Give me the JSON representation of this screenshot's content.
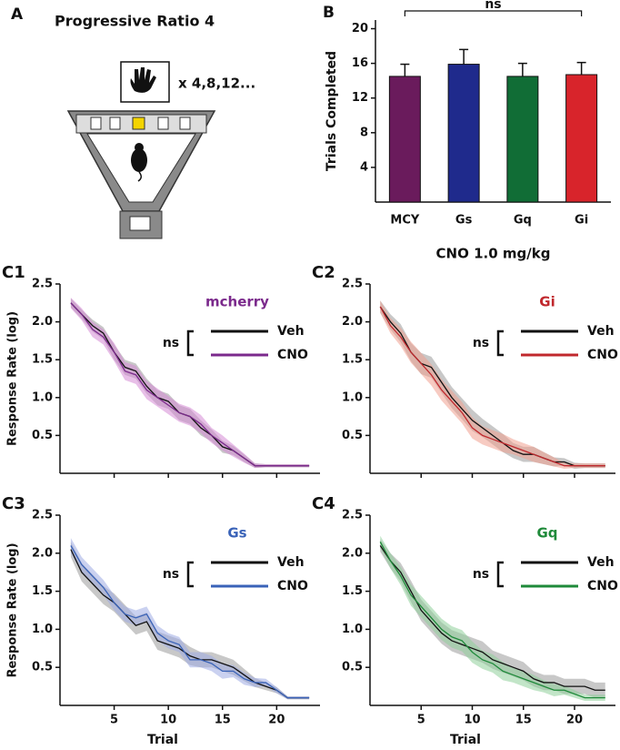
{
  "panel_a": {
    "label": "A",
    "title": "Progressive Ratio 4",
    "schedule": "x 4,8,12..."
  },
  "chart_data": [
    {
      "type": "bar",
      "panel": "B",
      "annotation": "ns",
      "ylabel": "Trials Completed",
      "xlabel": "CNO 1.0 mg/kg",
      "categories": [
        "MCY",
        "Gs",
        "Gq",
        "Gi"
      ],
      "values": [
        14.5,
        15.9,
        14.5,
        14.7
      ],
      "errors": [
        1.4,
        1.7,
        1.5,
        1.4
      ],
      "colors": [
        "#6a1b5c",
        "#1f2a8c",
        "#116d36",
        "#d8242b"
      ],
      "ylim": [
        0,
        21
      ],
      "yticks": [
        4,
        8,
        12,
        16,
        20
      ]
    },
    {
      "type": "line",
      "panel": "C1",
      "legend_title": "mcherry",
      "annotation": "ns",
      "ylabel": "Response Rate (log)",
      "show_xtick_labels": false,
      "x": [
        1,
        2,
        3,
        4,
        5,
        6,
        7,
        8,
        9,
        10,
        11,
        12,
        13,
        14,
        15,
        16,
        17,
        18,
        19,
        20,
        21,
        22,
        23
      ],
      "xlim": [
        0,
        24
      ],
      "xticks": [
        5,
        10,
        15,
        20
      ],
      "ylim": [
        0,
        2.5
      ],
      "yticks": [
        0.5,
        {
          "value": 1,
          "label": "1.0"
        },
        1.5,
        {
          "value": 2,
          "label": "2.0"
        },
        2.5
      ],
      "series": [
        {
          "name": "Veh",
          "color": "#111111",
          "band_color": "#9a9a9a",
          "values": [
            2.25,
            2.1,
            1.95,
            1.85,
            1.6,
            1.4,
            1.35,
            1.15,
            1.0,
            0.95,
            0.8,
            0.75,
            0.6,
            0.5,
            0.35,
            0.3,
            0.2,
            0.1,
            0.1,
            0.1,
            0.1,
            0.1,
            0.1
          ],
          "errors": [
            0.06,
            0.06,
            0.08,
            0.08,
            0.1,
            0.1,
            0.1,
            0.1,
            0.1,
            0.1,
            0.1,
            0.1,
            0.1,
            0.08,
            0.08,
            0.06,
            0.05,
            0.03,
            0.02,
            0.02,
            0.02,
            0.02,
            0.02
          ]
        },
        {
          "name": "CNO",
          "color": "#7b2a8c",
          "band_color": "#d68ad6",
          "values": [
            2.25,
            2.1,
            1.9,
            1.8,
            1.6,
            1.35,
            1.3,
            1.1,
            1.0,
            0.9,
            0.8,
            0.75,
            0.65,
            0.5,
            0.4,
            0.3,
            0.2,
            0.1,
            0.1,
            0.1,
            0.1,
            0.1,
            0.1
          ],
          "errors": [
            0.07,
            0.08,
            0.1,
            0.1,
            0.12,
            0.12,
            0.12,
            0.12,
            0.12,
            0.12,
            0.12,
            0.12,
            0.12,
            0.1,
            0.1,
            0.08,
            0.06,
            0.03,
            0.02,
            0.02,
            0.02,
            0.02,
            0.02
          ]
        }
      ]
    },
    {
      "type": "line",
      "panel": "C2",
      "legend_title": "Gi",
      "annotation": "ns",
      "show_xtick_labels": false,
      "x": [
        1,
        2,
        3,
        4,
        5,
        6,
        7,
        8,
        9,
        10,
        11,
        12,
        13,
        14,
        15,
        16,
        17,
        18,
        19,
        20,
        21,
        22,
        23
      ],
      "xlim": [
        0,
        24
      ],
      "xticks": [
        5,
        10,
        15,
        20
      ],
      "ylim": [
        0,
        2.5
      ],
      "yticks": [
        0.5,
        {
          "value": 1,
          "label": "1.0"
        },
        1.5,
        {
          "value": 2,
          "label": "2.0"
        },
        2.5
      ],
      "series": [
        {
          "name": "Veh",
          "color": "#111111",
          "band_color": "#9a9a9a",
          "values": [
            2.2,
            2.0,
            1.85,
            1.6,
            1.45,
            1.4,
            1.2,
            1.0,
            0.85,
            0.7,
            0.6,
            0.5,
            0.4,
            0.3,
            0.25,
            0.25,
            0.2,
            0.15,
            0.15,
            0.1,
            0.1,
            0.1,
            0.1
          ],
          "errors": [
            0.08,
            0.1,
            0.12,
            0.12,
            0.14,
            0.14,
            0.14,
            0.14,
            0.14,
            0.14,
            0.12,
            0.12,
            0.12,
            0.1,
            0.1,
            0.1,
            0.08,
            0.06,
            0.05,
            0.04,
            0.03,
            0.03,
            0.03
          ]
        },
        {
          "name": "CNO",
          "color": "#c0282d",
          "band_color": "#f0a090",
          "values": [
            2.2,
            1.95,
            1.8,
            1.6,
            1.45,
            1.3,
            1.1,
            0.95,
            0.8,
            0.6,
            0.5,
            0.45,
            0.4,
            0.35,
            0.3,
            0.25,
            0.2,
            0.15,
            0.1,
            0.1,
            0.1,
            0.1,
            0.1
          ],
          "errors": [
            0.08,
            0.1,
            0.12,
            0.14,
            0.14,
            0.14,
            0.14,
            0.14,
            0.14,
            0.14,
            0.12,
            0.12,
            0.12,
            0.1,
            0.1,
            0.1,
            0.08,
            0.06,
            0.04,
            0.03,
            0.03,
            0.03,
            0.03
          ]
        }
      ]
    },
    {
      "type": "line",
      "panel": "C3",
      "legend_title": "Gs",
      "annotation": "ns",
      "ylabel": "Response Rate (log)",
      "xlabel": "Trial",
      "show_xtick_labels": true,
      "x": [
        1,
        2,
        3,
        4,
        5,
        6,
        7,
        8,
        9,
        10,
        11,
        12,
        13,
        14,
        15,
        16,
        17,
        18,
        19,
        20,
        21,
        22,
        23
      ],
      "xlim": [
        0,
        24
      ],
      "xticks": [
        5,
        10,
        15,
        20
      ],
      "ylim": [
        0,
        2.5
      ],
      "yticks": [
        0.5,
        {
          "value": 1,
          "label": "1.0"
        },
        1.5,
        {
          "value": 2,
          "label": "2.0"
        },
        2.5
      ],
      "series": [
        {
          "name": "Veh",
          "color": "#111111",
          "band_color": "#9a9a9a",
          "values": [
            2.05,
            1.75,
            1.6,
            1.45,
            1.35,
            1.2,
            1.05,
            1.1,
            0.85,
            0.8,
            0.75,
            0.65,
            0.6,
            0.6,
            0.55,
            0.5,
            0.4,
            0.3,
            0.25,
            0.2,
            0.1,
            0.1,
            0.1
          ],
          "errors": [
            0.1,
            0.12,
            0.12,
            0.12,
            0.12,
            0.12,
            0.12,
            0.12,
            0.12,
            0.12,
            0.12,
            0.12,
            0.1,
            0.1,
            0.1,
            0.1,
            0.08,
            0.06,
            0.05,
            0.04,
            0.02,
            0.02,
            0.02
          ]
        },
        {
          "name": "CNO",
          "color": "#3a63b8",
          "band_color": "#9fabe3",
          "values": [
            2.1,
            1.85,
            1.7,
            1.55,
            1.35,
            1.2,
            1.15,
            1.2,
            0.95,
            0.85,
            0.8,
            0.6,
            0.6,
            0.55,
            0.45,
            0.45,
            0.35,
            0.3,
            0.3,
            0.2,
            0.1,
            0.1,
            0.1
          ],
          "errors": [
            0.1,
            0.1,
            0.1,
            0.1,
            0.1,
            0.1,
            0.1,
            0.1,
            0.1,
            0.1,
            0.1,
            0.1,
            0.1,
            0.1,
            0.1,
            0.08,
            0.08,
            0.06,
            0.05,
            0.04,
            0.02,
            0.02,
            0.02
          ]
        }
      ]
    },
    {
      "type": "line",
      "panel": "C4",
      "legend_title": "Gq",
      "annotation": "ns",
      "xlabel": "Trial",
      "show_xtick_labels": true,
      "x": [
        1,
        2,
        3,
        4,
        5,
        6,
        7,
        8,
        9,
        10,
        11,
        12,
        13,
        14,
        15,
        16,
        17,
        18,
        19,
        20,
        21,
        22,
        23
      ],
      "xlim": [
        0,
        24
      ],
      "xticks": [
        5,
        10,
        15,
        20
      ],
      "ylim": [
        0,
        2.5
      ],
      "yticks": [
        0.5,
        {
          "value": 1,
          "label": "1.0"
        },
        1.5,
        {
          "value": 2,
          "label": "2.0"
        },
        2.5
      ],
      "series": [
        {
          "name": "Veh",
          "color": "#111111",
          "band_color": "#9a9a9a",
          "values": [
            2.1,
            1.9,
            1.75,
            1.5,
            1.25,
            1.1,
            0.95,
            0.85,
            0.8,
            0.75,
            0.7,
            0.6,
            0.55,
            0.5,
            0.45,
            0.35,
            0.3,
            0.3,
            0.25,
            0.25,
            0.25,
            0.2,
            0.2
          ],
          "errors": [
            0.08,
            0.1,
            0.12,
            0.14,
            0.14,
            0.14,
            0.14,
            0.14,
            0.14,
            0.14,
            0.14,
            0.12,
            0.12,
            0.12,
            0.12,
            0.1,
            0.1,
            0.1,
            0.1,
            0.1,
            0.1,
            0.1,
            0.1
          ]
        },
        {
          "name": "CNO",
          "color": "#1f8a3a",
          "band_color": "#8fcf9a",
          "values": [
            2.15,
            1.9,
            1.7,
            1.45,
            1.3,
            1.15,
            1.0,
            0.9,
            0.85,
            0.7,
            0.6,
            0.55,
            0.45,
            0.4,
            0.35,
            0.3,
            0.25,
            0.2,
            0.2,
            0.15,
            0.1,
            0.1,
            0.1
          ],
          "errors": [
            0.08,
            0.1,
            0.12,
            0.14,
            0.14,
            0.14,
            0.14,
            0.14,
            0.14,
            0.14,
            0.12,
            0.12,
            0.12,
            0.1,
            0.1,
            0.1,
            0.08,
            0.08,
            0.06,
            0.05,
            0.04,
            0.04,
            0.04
          ]
        }
      ]
    }
  ]
}
